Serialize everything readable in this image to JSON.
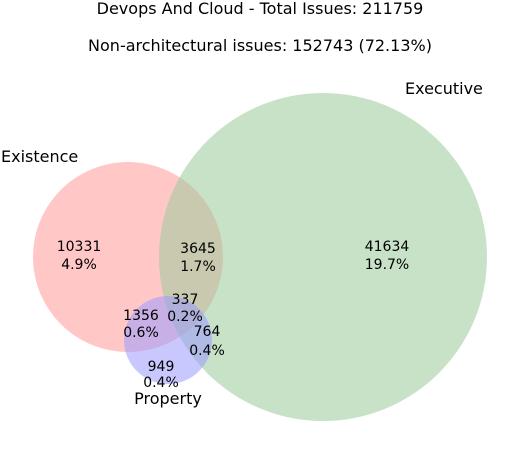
{
  "chart_data": {
    "type": "venn",
    "title": "Devops And Cloud - Total Issues: 211759",
    "subtitle": "Non-architectural issues: 152743 (72.13%)",
    "sets": [
      {
        "name": "Existence",
        "color": "#ff9a99"
      },
      {
        "name": "Executive",
        "color": "#9bcb9b"
      },
      {
        "name": "Property",
        "color": "#9b9bfe"
      }
    ],
    "regions": [
      {
        "id": "existence-only",
        "sets": [
          "Existence"
        ],
        "count": "10331",
        "percent": "4.9%"
      },
      {
        "id": "executive-only",
        "sets": [
          "Executive"
        ],
        "count": "41634",
        "percent": "19.7%"
      },
      {
        "id": "property-only",
        "sets": [
          "Property"
        ],
        "count": "949",
        "percent": "0.4%"
      },
      {
        "id": "existence-executive",
        "sets": [
          "Existence",
          "Executive"
        ],
        "count": "3645",
        "percent": "1.7%"
      },
      {
        "id": "existence-property",
        "sets": [
          "Existence",
          "Property"
        ],
        "count": "1356",
        "percent": "0.6%"
      },
      {
        "id": "executive-property",
        "sets": [
          "Executive",
          "Property"
        ],
        "count": "764",
        "percent": "0.4%"
      },
      {
        "id": "all-three",
        "sets": [
          "Existence",
          "Executive",
          "Property"
        ],
        "count": "337",
        "percent": "0.2%"
      }
    ]
  }
}
